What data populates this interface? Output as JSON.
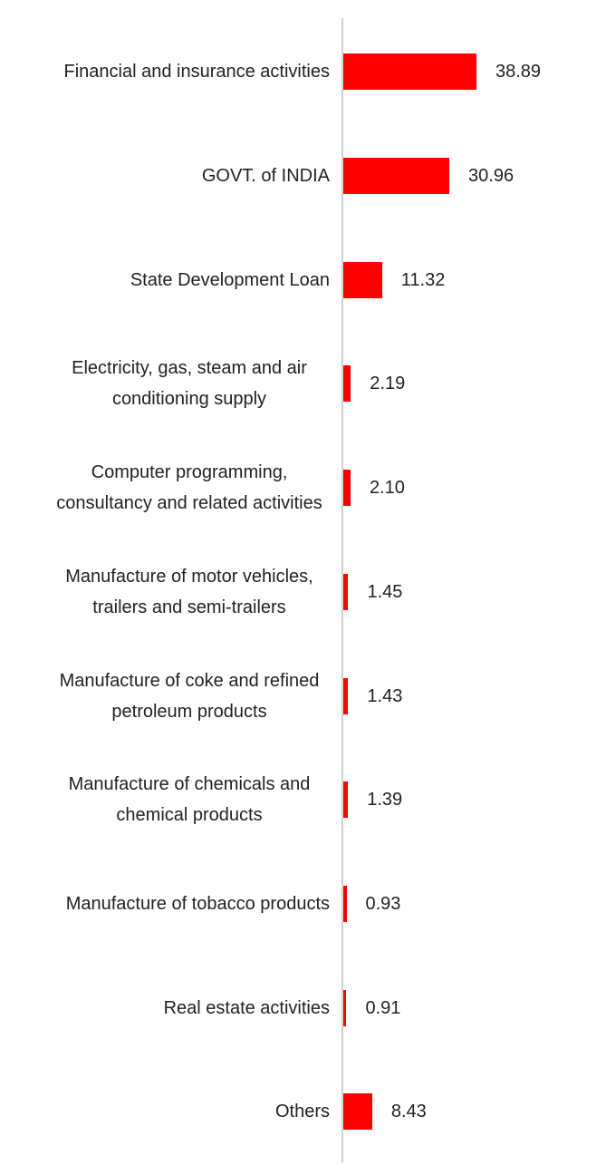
{
  "chart_data": {
    "type": "bar",
    "orientation": "horizontal",
    "color": "#ff0000",
    "categories": [
      "Financial and insurance activities",
      "GOVT. of INDIA",
      "State Development Loan",
      "Electricity, gas, steam and air conditioning supply",
      "Computer programming, consultancy and related activities",
      "Manufacture of motor vehicles, trailers and semi-trailers",
      "Manufacture of coke and refined petroleum products",
      "Manufacture of chemicals and chemical products",
      "Manufacture of tobacco products",
      "Real estate activities",
      "Others"
    ],
    "values": [
      38.89,
      30.96,
      11.32,
      2.19,
      2.1,
      1.45,
      1.43,
      1.39,
      0.93,
      0.91,
      8.43
    ],
    "value_labels": [
      "38.89",
      "30.96",
      "11.32",
      "2.19",
      "2.10",
      "1.45",
      "1.43",
      "1.39",
      "0.93",
      "0.91",
      "8.43"
    ]
  }
}
